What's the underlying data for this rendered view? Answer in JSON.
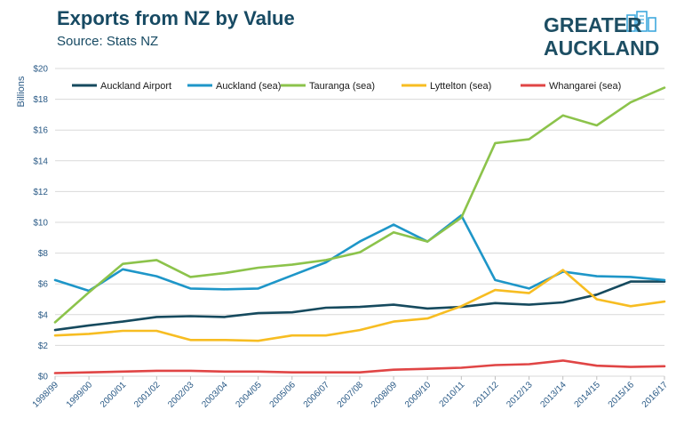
{
  "header": {
    "title": "Exports from NZ by Value",
    "subtitle": "Source: Stats NZ",
    "logo_line1": "GREATER",
    "logo_line2": "AUCKLAND"
  },
  "colors": {
    "title": "#174a63",
    "grid": "#d9d9d9",
    "tick_text": "#2a5a86",
    "logo": "#1d4e63",
    "logo_accent": "#3fa9dd"
  },
  "chart_data": {
    "type": "line",
    "title": "Exports from NZ by Value",
    "subtitle": "Source: Stats NZ",
    "xlabel": "",
    "ylabel": "Billions",
    "ylim": [
      0,
      20
    ],
    "yticks": [
      0,
      2,
      4,
      6,
      8,
      10,
      12,
      14,
      16,
      18,
      20
    ],
    "ytick_labels": [
      "$0",
      "$2",
      "$4",
      "$6",
      "$8",
      "$10",
      "$12",
      "$14",
      "$16",
      "$18",
      "$20"
    ],
    "grid": true,
    "legend_position": "top",
    "categories": [
      "1998/99",
      "1999/00",
      "2000/01",
      "2001/02",
      "2002/03",
      "2003/04",
      "2004/05",
      "2005/06",
      "2006/07",
      "2007/08",
      "2008/09",
      "2009/10",
      "2010/11",
      "2011/12",
      "2012/13",
      "2013/14",
      "2014/15",
      "2015/16",
      "2016/17"
    ],
    "series": [
      {
        "name": "Auckland Airport",
        "color": "#164a5e",
        "values": [
          3.0,
          3.3,
          3.55,
          3.85,
          3.9,
          3.85,
          4.1,
          4.15,
          4.45,
          4.5,
          4.65,
          4.4,
          4.5,
          4.75,
          4.65,
          4.8,
          5.3,
          6.15,
          6.15
        ]
      },
      {
        "name": "Auckland (sea)",
        "color": "#1e96c8",
        "values": [
          6.25,
          5.55,
          6.95,
          6.5,
          5.7,
          5.65,
          5.7,
          6.55,
          7.4,
          8.75,
          9.85,
          8.75,
          10.45,
          6.25,
          5.7,
          6.8,
          6.5,
          6.45,
          6.25
        ]
      },
      {
        "name": "Tauranga (sea)",
        "color": "#8cc34b",
        "values": [
          3.5,
          5.45,
          7.3,
          7.55,
          6.45,
          6.7,
          7.05,
          7.25,
          7.55,
          8.05,
          9.35,
          8.75,
          10.3,
          15.15,
          15.4,
          16.95,
          16.3,
          17.8,
          18.75
        ]
      },
      {
        "name": "Lyttelton (sea)",
        "color": "#f7bd22",
        "values": [
          2.65,
          2.75,
          2.95,
          2.95,
          2.35,
          2.35,
          2.3,
          2.65,
          2.65,
          3.0,
          3.55,
          3.75,
          4.55,
          5.6,
          5.4,
          6.9,
          5.0,
          4.55,
          4.85
        ]
      },
      {
        "name": "Whangarei (sea)",
        "color": "#e04545",
        "values": [
          0.2,
          0.25,
          0.3,
          0.35,
          0.35,
          0.3,
          0.3,
          0.25,
          0.25,
          0.25,
          0.42,
          0.48,
          0.55,
          0.72,
          0.78,
          1.02,
          0.68,
          0.6,
          0.65
        ]
      }
    ]
  }
}
